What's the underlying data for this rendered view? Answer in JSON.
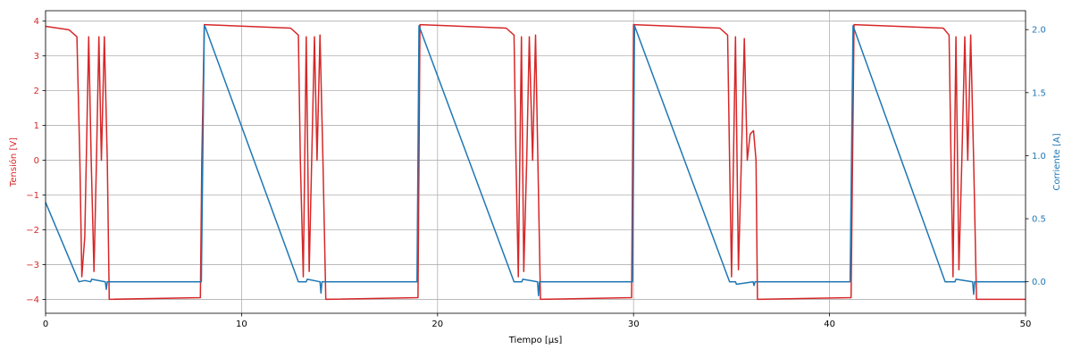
{
  "chart_data": {
    "type": "line",
    "title": "",
    "xlabel": "Tiempo [μs]",
    "ylabel_left": "Tensión [V]",
    "ylabel_right": "Corriente [A]",
    "xlim": [
      0,
      50
    ],
    "ylim_left": [
      -4.4,
      4.3
    ],
    "ylim_right": [
      -0.25,
      2.15
    ],
    "xticks": [
      0,
      10,
      20,
      30,
      40,
      50
    ],
    "yticks_left": [
      -4,
      -3,
      -2,
      -1,
      0,
      1,
      2,
      3,
      4
    ],
    "yticks_right": [
      0.0,
      0.5,
      1.0,
      1.5,
      2.0
    ],
    "xtick_labels": [
      "0",
      "10",
      "20",
      "30",
      "40",
      "50"
    ],
    "ytick_labels_left": [
      "−4",
      "−3",
      "−2",
      "−1",
      "0",
      "1",
      "2",
      "3",
      "4"
    ],
    "ytick_labels_right": [
      "0.0",
      "0.5",
      "1.0",
      "1.5",
      "2.0"
    ],
    "grid": true,
    "colors": {
      "voltage": "#d62728",
      "current": "#1f77b4",
      "axes": "#000000",
      "grid": "#b0b0b0"
    },
    "series": [
      {
        "axis": "left",
        "color": "#d62728",
        "x": [
          0,
          1.2,
          1.6,
          1.75,
          1.85,
          2.0,
          2.2,
          2.33,
          2.47,
          2.6,
          2.72,
          2.85,
          3.0,
          3.15,
          3.25,
          7.9,
          7.97,
          8.1,
          12.5,
          12.9,
          13.0,
          13.15,
          13.3,
          13.45,
          13.58,
          13.72,
          13.85,
          14.0,
          14.15,
          14.3,
          19.0,
          19.1,
          23.5,
          23.9,
          24.0,
          24.12,
          24.28,
          24.4,
          24.55,
          24.68,
          24.85,
          25.0,
          25.12,
          25.25,
          29.9,
          30.0,
          34.4,
          34.8,
          34.9,
          35.0,
          35.2,
          35.35,
          35.5,
          35.65,
          35.8,
          35.95,
          36.12,
          36.25,
          36.32,
          36.38,
          41.1,
          41.25,
          45.8,
          46.1,
          46.2,
          46.3,
          46.45,
          46.6,
          46.75,
          46.9,
          47.05,
          47.2,
          47.35,
          47.5,
          50
        ],
        "y": [
          3.85,
          3.75,
          3.55,
          0,
          -3.35,
          -2.2,
          3.55,
          0,
          -3.2,
          0,
          3.55,
          0,
          3.55,
          0,
          -4.0,
          -3.95,
          0,
          3.9,
          3.8,
          3.6,
          0,
          -3.35,
          3.55,
          -3.2,
          0,
          3.55,
          0,
          3.6,
          0,
          -4.0,
          -3.95,
          3.9,
          3.8,
          3.6,
          0,
          -3.35,
          3.55,
          -3.2,
          0,
          3.55,
          0,
          3.6,
          0,
          -4.0,
          -3.95,
          3.9,
          3.8,
          3.6,
          0,
          -3.35,
          3.55,
          -3.15,
          0,
          3.5,
          0,
          0.75,
          0.85,
          0,
          -4.0,
          -4.0,
          -3.95,
          3.9,
          3.8,
          3.6,
          0,
          -3.35,
          3.55,
          -3.15,
          0,
          3.55,
          0,
          3.6,
          0,
          -4.0,
          -4.0
        ]
      },
      {
        "axis": "right",
        "color": "#1f77b4",
        "x": [
          0,
          1.7,
          2.0,
          2.3,
          2.35,
          3.05,
          3.1,
          3.15,
          3.2,
          7.95,
          8.1,
          8.15,
          12.9,
          13.3,
          13.35,
          14.0,
          14.05,
          14.1,
          18.95,
          19.05,
          23.9,
          24.3,
          24.35,
          25.1,
          25.15,
          25.2,
          29.95,
          30.05,
          34.9,
          35.2,
          35.25,
          36.1,
          36.15,
          36.2,
          41.05,
          41.2,
          45.9,
          46.4,
          46.45,
          47.3,
          47.35,
          47.4,
          50
        ],
        "y": [
          0.63,
          0.0,
          0.01,
          0.0,
          0.02,
          0.0,
          -0.06,
          0.0,
          0.0,
          0.0,
          2.03,
          2.02,
          0.0,
          0.0,
          0.02,
          0.0,
          -0.09,
          0.0,
          0.0,
          2.03,
          0.0,
          0.0,
          0.02,
          0.0,
          -0.11,
          0.0,
          0.0,
          2.03,
          0.0,
          0.0,
          -0.02,
          0.0,
          -0.03,
          0.0,
          0.0,
          2.03,
          0.0,
          0.0,
          0.02,
          0.0,
          -0.1,
          0.0,
          0.0
        ]
      }
    ]
  }
}
